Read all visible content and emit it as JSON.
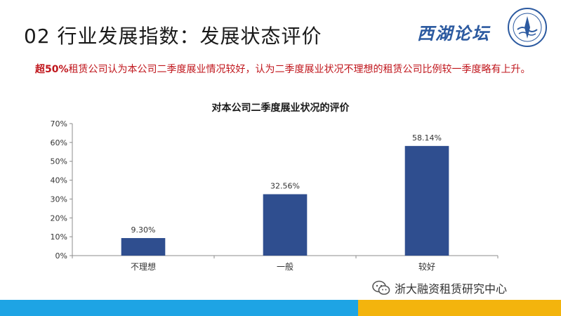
{
  "slide": {
    "title": "02 行业发展指数：发展状态评价",
    "logo_text": "西湖论坛"
  },
  "summary": {
    "highlight": "超50%",
    "text": "租赁公司认为本公司二季度展业情况较好，认为二季度展业状况不理想的租赁公司比例较一季度略有上升。"
  },
  "chart_data": {
    "type": "bar",
    "title": "对本公司二季度展业状况的评价",
    "categories": [
      "不理想",
      "一般",
      "较好"
    ],
    "values": [
      9.3,
      32.56,
      58.14
    ],
    "value_labels": [
      "9.30%",
      "32.56%",
      "58.14%"
    ],
    "ylim": [
      0,
      70
    ],
    "yticks": [
      0,
      10,
      20,
      30,
      40,
      50,
      60,
      70
    ],
    "ytick_labels": [
      "0%",
      "10%",
      "20%",
      "30%",
      "40%",
      "50%",
      "60%",
      "70%"
    ],
    "grid": false,
    "legend": "none",
    "bar_color": "#2f4e8f",
    "xlabel": "",
    "ylabel": ""
  },
  "footer": {
    "watermark": "浙大融资租赁研究中心",
    "icon": "wechat-icon"
  },
  "colors": {
    "summary_text": "#c0161c",
    "footer_blue": "#1ea4e4",
    "footer_yellow": "#f3b40d"
  }
}
